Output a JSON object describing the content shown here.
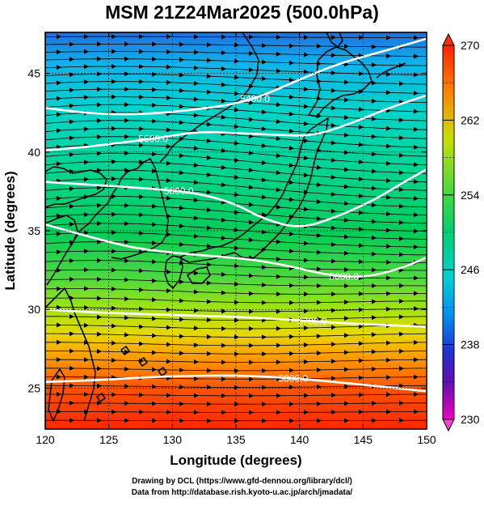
{
  "title": "MSM 21Z24Mar2025 (500.0hPa)",
  "map": {
    "xlabel": "Longitude (degrees)",
    "ylabel": "Latitude  (degrees)",
    "xlim": [
      120,
      150
    ],
    "ylim": [
      22.4,
      47.6
    ],
    "xticks": [
      120,
      125,
      130,
      135,
      140,
      145,
      150
    ],
    "xtick_labels": [
      "120",
      "125",
      "130",
      "135",
      "140",
      "145",
      "150"
    ],
    "yticks": [
      25,
      30,
      35,
      40,
      45
    ],
    "ytick_labels": [
      "25",
      "30",
      "35",
      "40",
      "45"
    ],
    "grid": true,
    "field": "temperature",
    "colors": {
      "cold": "#1e5fd8",
      "cool": "#00c8e0",
      "mid": "#00d278",
      "warm": "#aee400",
      "hot": "#ff2a00"
    },
    "height_contours": [
      {
        "label": "5400.0",
        "label_lon": 136.5,
        "points": [
          [
            120,
            42.8
          ],
          [
            124,
            42.4
          ],
          [
            128,
            42.4
          ],
          [
            132,
            42.7
          ],
          [
            136,
            43.2
          ],
          [
            140,
            44.6
          ],
          [
            143,
            45.6
          ],
          [
            147,
            46.5
          ],
          [
            150,
            47.2
          ]
        ]
      },
      {
        "label": "5500.0",
        "label_lon": 128.5,
        "points": [
          [
            120,
            40.1
          ],
          [
            123,
            40.3
          ],
          [
            126,
            40.6
          ],
          [
            129,
            40.9
          ],
          [
            132,
            41.3
          ],
          [
            135,
            41.2
          ],
          [
            138,
            41.1
          ],
          [
            141,
            41.0
          ],
          [
            144,
            41.8
          ],
          [
            147,
            42.8
          ],
          [
            150,
            43.6
          ]
        ]
      },
      {
        "label": "5600.0",
        "label_lon": 130.5,
        "points": [
          [
            120,
            38.1
          ],
          [
            124,
            37.9
          ],
          [
            128,
            37.7
          ],
          [
            132,
            37.4
          ],
          [
            135,
            36.7
          ],
          [
            137,
            35.8
          ],
          [
            140,
            35.1
          ],
          [
            143,
            35.9
          ],
          [
            146,
            37.0
          ],
          [
            148,
            38.0
          ],
          [
            150,
            38.9
          ]
        ]
      },
      {
        "label": "5600.0",
        "label_lon": 143.5,
        "points": [
          [
            120,
            35.4
          ],
          [
            124,
            34.5
          ],
          [
            127,
            33.9
          ],
          [
            130,
            33.6
          ],
          [
            133,
            33.4
          ],
          [
            136,
            33.2
          ],
          [
            139,
            32.8
          ],
          [
            142,
            32.2
          ],
          [
            145,
            32.0
          ],
          [
            148,
            32.6
          ],
          [
            150,
            33.3
          ]
        ]
      },
      {
        "label": "5700.0",
        "label_lon": 141.0,
        "points": [
          [
            120,
            30.0
          ],
          [
            124,
            29.8
          ],
          [
            128,
            29.7
          ],
          [
            132,
            29.6
          ],
          [
            136,
            29.5
          ],
          [
            140,
            29.3
          ],
          [
            144,
            29.1
          ],
          [
            150,
            28.9
          ]
        ]
      },
      {
        "label": "5800.0",
        "label_lon": 139.5,
        "points": [
          [
            120,
            25.4
          ],
          [
            124,
            25.5
          ],
          [
            128,
            25.7
          ],
          [
            132,
            25.8
          ],
          [
            136,
            25.8
          ],
          [
            140,
            25.6
          ],
          [
            144,
            25.3
          ],
          [
            150,
            24.8
          ]
        ]
      }
    ]
  },
  "colorbar": {
    "min": 230,
    "max": 270,
    "labels": [
      "270",
      "262",
      "254",
      "246",
      "238",
      "230"
    ],
    "label_values": [
      270,
      262,
      254,
      246,
      238,
      230
    ]
  },
  "credits": {
    "line1": "Drawing by DCL (https://www.gfd-dennou.org/library/dcl/)",
    "line2": "Data from http://database.rish.kyoto-u.ac.jp/arch/jmadata/"
  }
}
